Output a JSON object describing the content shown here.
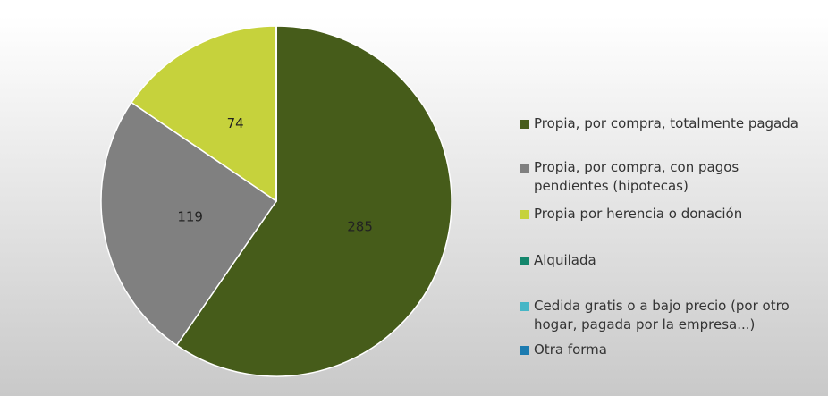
{
  "chart_data": {
    "type": "pie",
    "categories": [
      "Propia, por compra, totalmente pagada",
      "Propia, por compra, con pagos pendientes (hipotecas)",
      "Propia por herencia o donación",
      "Alquilada",
      "Cedida gratis o a bajo precio (por otro hogar, pagada por la empresa...)",
      "Otra forma"
    ],
    "values": [
      285,
      119,
      74,
      0,
      0,
      0
    ],
    "colors": [
      "#465c1a",
      "#808080",
      "#c6d23c",
      "#14866c",
      "#46b6c6",
      "#1c7bb0"
    ],
    "legend": "right"
  }
}
